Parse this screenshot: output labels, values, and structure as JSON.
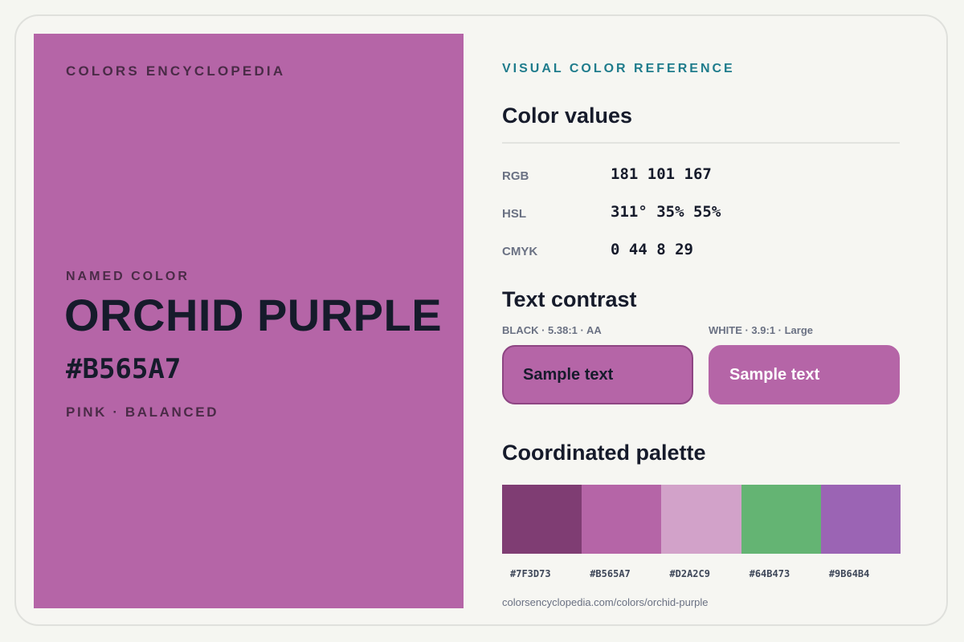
{
  "brand": "COLORS ENCYCLOPEDIA",
  "hero": {
    "named_label": "NAMED COLOR",
    "name": "ORCHID PURPLE",
    "hex": "#B565A7",
    "family": "PINK · BALANCED",
    "background": "#b565a7"
  },
  "kicker": "VISUAL COLOR REFERENCE",
  "values": {
    "heading": "Color values",
    "rows": [
      {
        "label": "RGB",
        "value": "181 101 167"
      },
      {
        "label": "HSL",
        "value": "311° 35% 55%"
      },
      {
        "label": "CMYK",
        "value": "0 44 8 29"
      }
    ]
  },
  "contrast": {
    "heading": "Text contrast",
    "black": {
      "label": "BLACK · 5.38:1 · AA",
      "sample": "Sample text",
      "text_color": "#161b2b",
      "background": "#b565a7"
    },
    "white": {
      "label": "WHITE · 3.9:1 · Large",
      "sample": "Sample text",
      "text_color": "#ffffff",
      "background": "#b565a7"
    }
  },
  "palette": {
    "heading": "Coordinated palette",
    "swatches": [
      {
        "hex": "#7F3D73",
        "color": "#7f3d73"
      },
      {
        "hex": "#B565A7",
        "color": "#b565a7"
      },
      {
        "hex": "#D2A2C9",
        "color": "#d2a2c9"
      },
      {
        "hex": "#64B473",
        "color": "#64b473"
      },
      {
        "hex": "#9B64B4",
        "color": "#9b64b4"
      }
    ]
  },
  "url": "colorsencyclopedia.com/colors/orchid-purple"
}
